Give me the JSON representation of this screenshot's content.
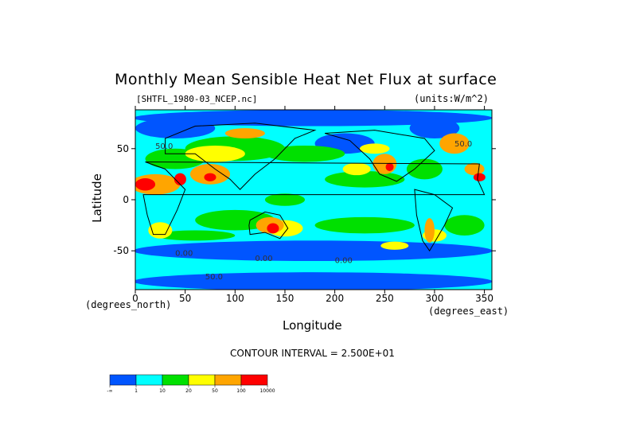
{
  "chart_data": {
    "type": "heatmap",
    "title": "Monthly Mean Sensible Heat Net Flux at surface",
    "file_label": "[SHTFL_1980-03_NCEP.nc]",
    "units_label": "(units:W/m^2)",
    "xlabel": "Longitude",
    "ylabel": "Latitude",
    "x_unit_label": "(degrees_east)",
    "y_unit_label": "(degrees_north)",
    "xlim": [
      0,
      357.5
    ],
    "ylim": [
      -88,
      88
    ],
    "x_ticks": [
      0,
      50,
      100,
      150,
      200,
      250,
      300,
      350
    ],
    "y_ticks": [
      50,
      0,
      -50
    ],
    "contour_interval_text": "CONTOUR INTERVAL = 2.500E+01",
    "contour_labels": [
      "50.0",
      "50.0",
      "0.00",
      "0.00",
      "0.00",
      "50.0"
    ],
    "colorbar": {
      "levels": [
        "-∞",
        "1",
        "10",
        "20",
        "50",
        "100",
        "10000"
      ],
      "colors": [
        "#0055ff",
        "#00ffff",
        "#00e000",
        "#ffff00",
        "#ffa500",
        "#ff0000"
      ]
    }
  }
}
